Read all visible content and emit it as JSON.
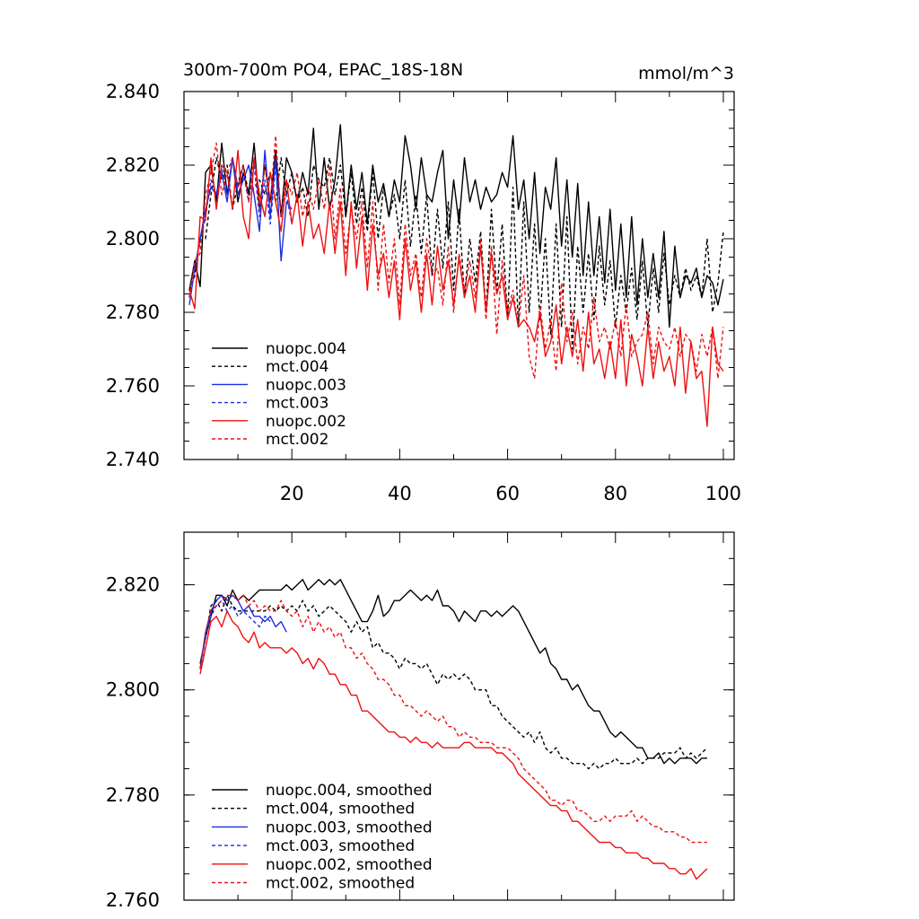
{
  "chart_data": [
    {
      "type": "line",
      "title": "300m-700m PO4, EPAC_18S-18N",
      "units": "mmol/m^3",
      "xlim": [
        0,
        102
      ],
      "ylim": [
        2.74,
        2.84
      ],
      "xticks": [
        20,
        40,
        60,
        80,
        100
      ],
      "yticks": [
        2.74,
        2.76,
        2.78,
        2.8,
        2.82,
        2.84
      ],
      "ytick_labels": [
        "2.740",
        "2.760",
        "2.780",
        "2.800",
        "2.820",
        "2.840"
      ],
      "legend_position": "lower-left",
      "series": [
        {
          "name": "nuopc.004",
          "color": "#000000",
          "dash": false,
          "x_start": 1,
          "y": [
            2.786,
            2.794,
            2.787,
            2.818,
            2.82,
            2.81,
            2.826,
            2.812,
            2.822,
            2.81,
            2.818,
            2.812,
            2.826,
            2.808,
            2.82,
            2.81,
            2.824,
            2.806,
            2.822,
            2.818,
            2.81,
            2.818,
            2.812,
            2.83,
            2.808,
            2.822,
            2.808,
            2.816,
            2.831,
            2.806,
            2.82,
            2.808,
            2.818,
            2.804,
            2.82,
            2.81,
            2.815,
            2.806,
            2.816,
            2.81,
            2.828,
            2.82,
            2.808,
            2.822,
            2.812,
            2.81,
            2.818,
            2.824,
            2.8,
            2.816,
            2.804,
            2.822,
            2.81,
            2.816,
            2.808,
            2.814,
            2.81,
            2.812,
            2.818,
            2.814,
            2.828,
            2.808,
            2.816,
            2.8,
            2.818,
            2.796,
            2.814,
            2.808,
            2.822,
            2.798,
            2.816,
            2.795,
            2.815,
            2.79,
            2.81,
            2.79,
            2.806,
            2.788,
            2.808,
            2.786,
            2.804,
            2.784,
            2.806,
            2.782,
            2.8,
            2.784,
            2.796,
            2.784,
            2.802,
            2.776,
            2.798,
            2.784,
            2.79,
            2.788,
            2.792,
            2.784,
            2.79,
            2.788,
            2.782,
            2.789
          ]
        },
        {
          "name": "mct.004",
          "color": "#000000",
          "dash": true,
          "x_start": 1,
          "y": [
            2.786,
            2.79,
            2.801,
            2.8,
            2.812,
            2.822,
            2.816,
            2.82,
            2.808,
            2.815,
            2.82,
            2.812,
            2.814,
            2.816,
            2.812,
            2.818,
            2.81,
            2.822,
            2.812,
            2.818,
            2.81,
            2.814,
            2.806,
            2.82,
            2.816,
            2.814,
            2.822,
            2.812,
            2.82,
            2.806,
            2.818,
            2.804,
            2.814,
            2.802,
            2.818,
            2.8,
            2.814,
            2.806,
            2.812,
            2.8,
            2.816,
            2.798,
            2.812,
            2.796,
            2.812,
            2.79,
            2.808,
            2.792,
            2.81,
            2.786,
            2.808,
            2.784,
            2.8,
            2.788,
            2.802,
            2.78,
            2.808,
            2.785,
            2.804,
            2.778,
            2.814,
            2.776,
            2.81,
            2.78,
            2.804,
            2.778,
            2.8,
            2.774,
            2.804,
            2.776,
            2.806,
            2.77,
            2.798,
            2.78,
            2.796,
            2.778,
            2.798,
            2.782,
            2.794,
            2.776,
            2.79,
            2.78,
            2.792,
            2.778,
            2.794,
            2.776,
            2.792,
            2.78,
            2.796,
            2.782,
            2.79,
            2.784,
            2.792,
            2.786,
            2.79,
            2.784,
            2.8,
            2.78,
            2.788,
            2.802
          ]
        },
        {
          "name": "nuopc.003",
          "color": "#1b2ee0",
          "dash": false,
          "x_start": 1,
          "y": [
            2.782,
            2.792,
            2.8,
            2.808,
            2.814,
            2.812,
            2.818,
            2.81,
            2.822,
            2.812,
            2.816,
            2.82,
            2.812,
            2.802,
            2.824,
            2.806,
            2.822,
            2.794,
            2.81,
            2.808
          ]
        },
        {
          "name": "mct.003",
          "color": "#1b2ee0",
          "dash": true,
          "x_start": 1,
          "y": [
            2.784,
            2.792,
            2.799,
            2.806,
            2.816,
            2.812,
            2.82,
            2.812,
            2.822,
            2.814,
            2.818,
            2.81,
            2.82,
            2.806,
            2.816,
            2.804,
            2.82,
            2.808,
            2.812,
            2.804
          ]
        },
        {
          "name": "nuopc.002",
          "color": "#ee1010",
          "dash": false,
          "x_start": 1,
          "y": [
            2.786,
            2.781,
            2.806,
            2.805,
            2.822,
            2.808,
            2.82,
            2.818,
            2.808,
            2.824,
            2.806,
            2.8,
            2.822,
            2.812,
            2.806,
            2.818,
            2.81,
            2.802,
            2.816,
            2.804,
            2.812,
            2.798,
            2.81,
            2.8,
            2.804,
            2.796,
            2.81,
            2.796,
            2.81,
            2.79,
            2.81,
            2.792,
            2.806,
            2.786,
            2.804,
            2.79,
            2.796,
            2.784,
            2.794,
            2.778,
            2.8,
            2.786,
            2.794,
            2.78,
            2.796,
            2.782,
            2.798,
            2.786,
            2.794,
            2.782,
            2.795,
            2.784,
            2.79,
            2.78,
            2.798,
            2.78,
            2.796,
            2.785,
            2.79,
            2.778,
            2.784,
            2.776,
            2.778,
            2.776,
            2.772,
            2.78,
            2.768,
            2.772,
            2.782,
            2.766,
            2.776,
            2.768,
            2.778,
            2.764,
            2.78,
            2.766,
            2.77,
            2.762,
            2.772,
            2.762,
            2.778,
            2.76,
            2.774,
            2.768,
            2.76,
            2.776,
            2.762,
            2.772,
            2.764,
            2.768,
            2.76,
            2.776,
            2.758,
            2.772,
            2.762,
            2.764,
            2.749,
            2.776,
            2.766,
            2.764
          ]
        },
        {
          "name": "mct.002",
          "color": "#ee1010",
          "dash": true,
          "x_start": 1,
          "y": [
            2.784,
            2.794,
            2.796,
            2.812,
            2.818,
            2.826,
            2.812,
            2.818,
            2.822,
            2.814,
            2.82,
            2.81,
            2.822,
            2.808,
            2.82,
            2.81,
            2.828,
            2.806,
            2.816,
            2.812,
            2.818,
            2.806,
            2.814,
            2.808,
            2.816,
            2.808,
            2.82,
            2.8,
            2.814,
            2.796,
            2.808,
            2.8,
            2.81,
            2.792,
            2.81,
            2.786,
            2.804,
            2.788,
            2.8,
            2.782,
            2.804,
            2.79,
            2.796,
            2.784,
            2.8,
            2.79,
            2.792,
            2.782,
            2.798,
            2.78,
            2.796,
            2.786,
            2.794,
            2.784,
            2.8,
            2.778,
            2.798,
            2.774,
            2.794,
            2.78,
            2.786,
            2.776,
            2.79,
            2.768,
            2.762,
            2.782,
            2.77,
            2.778,
            2.764,
            2.788,
            2.772,
            2.78,
            2.766,
            2.776,
            2.77,
            2.784,
            2.772,
            2.776,
            2.77,
            2.778,
            2.768,
            2.782,
            2.768,
            2.772,
            2.774,
            2.78,
            2.766,
            2.776,
            2.772,
            2.77,
            2.776,
            2.768,
            2.774,
            2.772,
            2.764,
            2.774,
            2.768,
            2.776,
            2.762,
            2.776
          ]
        }
      ]
    },
    {
      "type": "line",
      "title": "",
      "xlim": [
        0,
        102
      ],
      "ylim": [
        2.76,
        2.83
      ],
      "xticks": [
        20,
        40,
        60,
        80,
        100
      ],
      "yticks": [
        2.76,
        2.78,
        2.8,
        2.82
      ],
      "ytick_labels": [
        "2.760",
        "2.780",
        "2.800",
        "2.820"
      ],
      "legend_position": "lower-left",
      "series": [
        {
          "name": "nuopc.004, smoothed",
          "color": "#000000",
          "dash": false,
          "x_start": 3,
          "y": [
            2.805,
            2.81,
            2.814,
            2.818,
            2.818,
            2.816,
            2.819,
            2.817,
            2.818,
            2.817,
            2.818,
            2.819,
            2.819,
            2.819,
            2.819,
            2.819,
            2.82,
            2.819,
            2.82,
            2.821,
            2.819,
            2.82,
            2.821,
            2.82,
            2.821,
            2.82,
            2.821,
            2.819,
            2.817,
            2.815,
            2.813,
            2.813,
            2.815,
            2.818,
            2.814,
            2.815,
            2.817,
            2.817,
            2.818,
            2.819,
            2.818,
            2.817,
            2.818,
            2.817,
            2.819,
            2.816,
            2.816,
            2.815,
            2.813,
            2.815,
            2.814,
            2.813,
            2.815,
            2.815,
            2.814,
            2.815,
            2.814,
            2.815,
            2.816,
            2.815,
            2.813,
            2.811,
            2.809,
            2.807,
            2.808,
            2.805,
            2.804,
            2.802,
            2.802,
            2.8,
            2.801,
            2.799,
            2.797,
            2.796,
            2.796,
            2.794,
            2.792,
            2.791,
            2.792,
            2.791,
            2.79,
            2.789,
            2.789,
            2.787,
            2.787,
            2.788,
            2.786,
            2.787,
            2.786,
            2.787,
            2.787,
            2.787,
            2.786,
            2.787,
            2.787
          ]
        },
        {
          "name": "mct.004, smoothed",
          "color": "#000000",
          "dash": true,
          "x_start": 3,
          "y": [
            2.804,
            2.81,
            2.816,
            2.817,
            2.815,
            2.818,
            2.816,
            2.815,
            2.815,
            2.815,
            2.815,
            2.815,
            2.815,
            2.816,
            2.815,
            2.816,
            2.815,
            2.816,
            2.815,
            2.817,
            2.815,
            2.816,
            2.814,
            2.815,
            2.816,
            2.815,
            2.814,
            2.813,
            2.811,
            2.813,
            2.811,
            2.812,
            2.808,
            2.809,
            2.807,
            2.807,
            2.806,
            2.804,
            2.806,
            2.805,
            2.805,
            2.804,
            2.805,
            2.803,
            2.801,
            2.803,
            2.802,
            2.803,
            2.802,
            2.803,
            2.802,
            2.8,
            2.8,
            2.8,
            2.797,
            2.797,
            2.795,
            2.794,
            2.793,
            2.792,
            2.791,
            2.792,
            2.79,
            2.792,
            2.789,
            2.788,
            2.789,
            2.787,
            2.787,
            2.786,
            2.786,
            2.786,
            2.785,
            2.786,
            2.785,
            2.786,
            2.786,
            2.787,
            2.786,
            2.786,
            2.786,
            2.787,
            2.786,
            2.787,
            2.787,
            2.787,
            2.788,
            2.788,
            2.788,
            2.789,
            2.787,
            2.788,
            2.787,
            2.788,
            2.789
          ]
        },
        {
          "name": "nuopc.003, smoothed",
          "color": "#1b2ee0",
          "dash": false,
          "x_start": 3,
          "y": [
            2.804,
            2.811,
            2.815,
            2.817,
            2.818,
            2.817,
            2.818,
            2.817,
            2.815,
            2.816,
            2.814,
            2.814,
            2.813,
            2.814,
            2.812,
            2.813,
            2.811
          ]
        },
        {
          "name": "mct.003, smoothed",
          "color": "#1b2ee0",
          "dash": true,
          "x_start": 3,
          "y": [
            2.804,
            2.81,
            2.814,
            2.816,
            2.817,
            2.815,
            2.816,
            2.814,
            2.815,
            2.814,
            2.813,
            2.812,
            2.814,
            2.813
          ]
        },
        {
          "name": "nuopc.002, smoothed",
          "color": "#ee1010",
          "dash": false,
          "x_start": 3,
          "y": [
            2.803,
            2.808,
            2.813,
            2.814,
            2.812,
            2.815,
            2.813,
            2.812,
            2.81,
            2.809,
            2.811,
            2.808,
            2.809,
            2.808,
            2.808,
            2.808,
            2.807,
            2.808,
            2.807,
            2.805,
            2.806,
            2.804,
            2.806,
            2.805,
            2.803,
            2.803,
            2.801,
            2.801,
            2.799,
            2.799,
            2.796,
            2.796,
            2.795,
            2.794,
            2.793,
            2.792,
            2.792,
            2.791,
            2.791,
            2.79,
            2.791,
            2.79,
            2.79,
            2.789,
            2.79,
            2.789,
            2.789,
            2.789,
            2.789,
            2.79,
            2.79,
            2.789,
            2.789,
            2.789,
            2.789,
            2.788,
            2.788,
            2.787,
            2.786,
            2.784,
            2.783,
            2.782,
            2.781,
            2.78,
            2.779,
            2.778,
            2.778,
            2.777,
            2.777,
            2.775,
            2.775,
            2.774,
            2.773,
            2.772,
            2.771,
            2.771,
            2.771,
            2.77,
            2.77,
            2.769,
            2.769,
            2.769,
            2.768,
            2.768,
            2.767,
            2.767,
            2.767,
            2.766,
            2.766,
            2.765,
            2.765,
            2.766,
            2.764,
            2.765,
            2.766
          ]
        },
        {
          "name": "mct.002, smoothed",
          "color": "#ee1010",
          "dash": true,
          "x_start": 3,
          "y": [
            2.804,
            2.811,
            2.815,
            2.816,
            2.817,
            2.818,
            2.818,
            2.817,
            2.818,
            2.816,
            2.817,
            2.815,
            2.816,
            2.815,
            2.815,
            2.817,
            2.815,
            2.814,
            2.815,
            2.812,
            2.814,
            2.811,
            2.813,
            2.811,
            2.812,
            2.81,
            2.811,
            2.808,
            2.808,
            2.806,
            2.807,
            2.805,
            2.804,
            2.802,
            2.802,
            2.801,
            2.799,
            2.799,
            2.797,
            2.797,
            2.796,
            2.795,
            2.796,
            2.795,
            2.794,
            2.795,
            2.793,
            2.793,
            2.791,
            2.792,
            2.791,
            2.791,
            2.79,
            2.79,
            2.79,
            2.789,
            2.789,
            2.789,
            2.788,
            2.787,
            2.785,
            2.784,
            2.783,
            2.782,
            2.781,
            2.779,
            2.779,
            2.778,
            2.779,
            2.779,
            2.777,
            2.777,
            2.776,
            2.775,
            2.775,
            2.776,
            2.775,
            2.776,
            2.776,
            2.776,
            2.777,
            2.775,
            2.776,
            2.775,
            2.774,
            2.774,
            2.773,
            2.773,
            2.773,
            2.772,
            2.772,
            2.771,
            2.771,
            2.771,
            2.771
          ]
        }
      ]
    }
  ]
}
